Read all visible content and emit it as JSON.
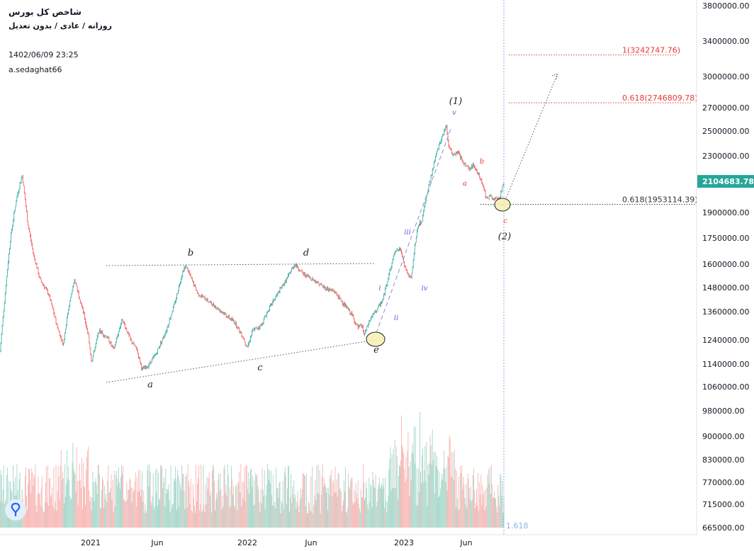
{
  "header": {
    "title": "شاخص کل بورس",
    "subtitle": "روزانه / عادی / بدون تعدیل",
    "datetime": "1402/06/09 23:25",
    "author": "a.sedaghat66"
  },
  "colors": {
    "up": "#26a69a",
    "down": "#ef5350",
    "vol_up": "#a5d6c9",
    "vol_down": "#f7b5b3",
    "last_price_bg": "#26a69a",
    "fib_red": "#e53935",
    "wave_blue": "#5c5cd6",
    "highlight": "#f6f0b0"
  },
  "chart_data": {
    "type": "candlestick",
    "title": "شاخص کل بورس",
    "y_ticks": [
      "3800000.00",
      "3400000.00",
      "3000000.00",
      "2700000.00",
      "2500000.00",
      "2300000.00",
      "2100000.00",
      "1900000.00",
      "1750000.00",
      "1600000.00",
      "1480000.00",
      "1360000.00",
      "1240000.00",
      "1140000.00",
      "1060000.00",
      "980000.00",
      "900000.00",
      "830000.00",
      "770000.00",
      "715000.00",
      "665000.00"
    ],
    "x_ticks": [
      "2021",
      "Jun",
      "2022",
      "Jun",
      "2023",
      "Jun"
    ],
    "last_price": "2104683.78",
    "fib_levels": [
      {
        "label": "1(3242747.76)",
        "value": 3242747.76
      },
      {
        "label": "0.618(2746809.78)",
        "value": 2746809.78
      },
      {
        "label": "0.618(1953114.39)",
        "value": 1953114.39
      }
    ],
    "volume_indicator_label": "1.618",
    "path": [
      [
        0.0,
        1190000
      ],
      [
        0.2,
        1400000
      ],
      [
        0.5,
        1750000
      ],
      [
        0.8,
        2000000
      ],
      [
        1.05,
        2150000
      ],
      [
        1.3,
        1850000
      ],
      [
        1.6,
        1650000
      ],
      [
        1.9,
        1520000
      ],
      [
        2.3,
        1450000
      ],
      [
        2.7,
        1300000
      ],
      [
        3.0,
        1220000
      ],
      [
        3.3,
        1400000
      ],
      [
        3.55,
        1520000
      ],
      [
        3.9,
        1380000
      ],
      [
        4.2,
        1260000
      ],
      [
        4.35,
        1150000
      ],
      [
        4.7,
        1280000
      ],
      [
        5.1,
        1250000
      ],
      [
        5.4,
        1200000
      ],
      [
        5.8,
        1330000
      ],
      [
        6.2,
        1240000
      ],
      [
        6.5,
        1200000
      ],
      [
        6.75,
        1120000
      ],
      [
        7.0,
        1130000
      ],
      [
        7.4,
        1180000
      ],
      [
        7.9,
        1280000
      ],
      [
        8.3,
        1400000
      ],
      [
        8.7,
        1570000
      ],
      [
        8.85,
        1590000
      ],
      [
        9.1,
        1520000
      ],
      [
        9.4,
        1450000
      ],
      [
        9.8,
        1420000
      ],
      [
        10.3,
        1380000
      ],
      [
        10.8,
        1340000
      ],
      [
        11.2,
        1310000
      ],
      [
        11.55,
        1250000
      ],
      [
        11.75,
        1210000
      ],
      [
        12.0,
        1280000
      ],
      [
        12.4,
        1300000
      ],
      [
        12.8,
        1380000
      ],
      [
        13.2,
        1450000
      ],
      [
        13.6,
        1520000
      ],
      [
        13.9,
        1580000
      ],
      [
        14.0,
        1600000
      ],
      [
        14.4,
        1550000
      ],
      [
        14.9,
        1520000
      ],
      [
        15.4,
        1480000
      ],
      [
        15.9,
        1460000
      ],
      [
        16.3,
        1400000
      ],
      [
        16.7,
        1350000
      ],
      [
        17.0,
        1290000
      ],
      [
        17.2,
        1300000
      ],
      [
        17.3,
        1260000
      ],
      [
        17.6,
        1330000
      ],
      [
        17.9,
        1370000
      ],
      [
        18.2,
        1420000
      ],
      [
        18.5,
        1560000
      ],
      [
        18.75,
        1660000
      ],
      [
        19.0,
        1700000
      ],
      [
        19.2,
        1600000
      ],
      [
        19.4,
        1540000
      ],
      [
        19.55,
        1530000
      ],
      [
        19.7,
        1700000
      ],
      [
        19.85,
        1820000
      ],
      [
        20.05,
        1850000
      ],
      [
        20.25,
        2000000
      ],
      [
        20.5,
        2150000
      ],
      [
        20.7,
        2300000
      ],
      [
        21.0,
        2450000
      ],
      [
        21.2,
        2550000
      ],
      [
        21.3,
        2400000
      ],
      [
        21.5,
        2300000
      ],
      [
        21.75,
        2330000
      ],
      [
        22.0,
        2250000
      ],
      [
        22.3,
        2200000
      ],
      [
        22.5,
        2230000
      ],
      [
        22.75,
        2160000
      ],
      [
        22.95,
        2080000
      ],
      [
        23.1,
        1990000
      ],
      [
        23.35,
        2010000
      ],
      [
        23.5,
        1980000
      ],
      [
        23.75,
        2000000
      ],
      [
        23.95,
        2105000
      ]
    ],
    "wave_labels": [
      {
        "text": "a",
        "t": 6.9,
        "v": 1090000,
        "style": "abc"
      },
      {
        "text": "b",
        "t": 8.8,
        "v": 1650000,
        "style": "abc"
      },
      {
        "text": "c",
        "t": 12.0,
        "v": 1170000,
        "style": "abc"
      },
      {
        "text": "d",
        "t": 14.1,
        "v": 1650000,
        "style": "abc"
      },
      {
        "text": "e",
        "t": 17.4,
        "v": 1215000,
        "style": "abc"
      },
      {
        "text": "i",
        "t": 17.55,
        "v": 1490000,
        "style": "impulse"
      },
      {
        "text": "ii",
        "t": 18.2,
        "v": 1345000,
        "style": "impulse"
      },
      {
        "text": "iii",
        "t": 18.8,
        "v": 1780000,
        "style": "impulse"
      },
      {
        "text": "iv",
        "t": 19.55,
        "v": 1490000,
        "style": "impulse"
      },
      {
        "text": "v",
        "t": 21.1,
        "v": 2620000,
        "style": "impulse"
      },
      {
        "text": "(1)",
        "t": 21.1,
        "v": 2700000,
        "style": "major"
      },
      {
        "text": "a",
        "t": 21.7,
        "v": 2050000,
        "style": "corr"
      },
      {
        "text": "b",
        "t": 22.45,
        "v": 2280000,
        "style": "corr"
      },
      {
        "text": "c",
        "t": 23.75,
        "v": 1860000,
        "style": "corr"
      },
      {
        "text": "(2)",
        "t": 23.75,
        "v": 1790000,
        "style": "major"
      }
    ]
  }
}
